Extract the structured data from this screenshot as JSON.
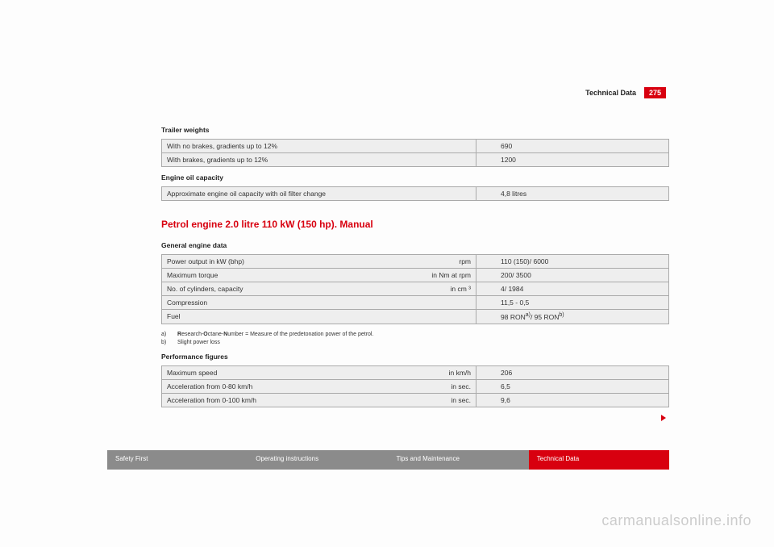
{
  "header": {
    "title": "Technical Data",
    "page": "275"
  },
  "colors": {
    "accent": "#d8000f",
    "tab_inactive": "#8b8b8b",
    "table_bg": "#eeeeee",
    "table_border": "#aaaaaa"
  },
  "sections": {
    "trailer_weights": {
      "label": "Trailer weights",
      "rows": [
        {
          "label": "With no brakes, gradients up to 12%",
          "value": "690"
        },
        {
          "label": "With brakes, gradients up to 12%",
          "value": "1200"
        }
      ]
    },
    "engine_oil": {
      "label": "Engine oil capacity",
      "rows": [
        {
          "label": "Approximate engine oil capacity with oil filter change",
          "value": "4,8 litres"
        }
      ]
    },
    "main_heading": "Petrol engine 2.0 litre 110 kW (150 hp). Manual",
    "general_engine": {
      "label": "General engine data",
      "rows": [
        {
          "label": "Power output in kW (bhp)",
          "unit": "rpm",
          "value": "110 (150)/ 6000"
        },
        {
          "label": "Maximum torque",
          "unit": "in Nm at rpm",
          "value": "200/ 3500"
        },
        {
          "label": "No. of cylinders, capacity",
          "unit": "in cm ³",
          "value": "4/ 1984"
        },
        {
          "label": "Compression",
          "unit": "",
          "value": "11,5 - 0,5"
        },
        {
          "label": "Fuel",
          "unit": "",
          "value_html": "98 RON<sup>a)</sup>/ 95 RON<sup>b)</sup>"
        }
      ]
    },
    "footnotes": [
      {
        "marker": "a)",
        "text_html": "<b>R</b>esearch-<b>O</b>ctane-<b>N</b>umber = Measure of the predetonation power of the petrol."
      },
      {
        "marker": "b)",
        "text": "Slight power loss"
      }
    ],
    "performance": {
      "label": "Performance figures",
      "rows": [
        {
          "label": "Maximum speed",
          "unit": "in km/h",
          "value": "206"
        },
        {
          "label": "Acceleration from 0-80 km/h",
          "unit": "in sec.",
          "value": "6,5"
        },
        {
          "label": "Acceleration from 0-100 km/h",
          "unit": "in sec.",
          "value": "9,6"
        }
      ]
    }
  },
  "nav": {
    "tabs": [
      {
        "label": "Safety First",
        "color": "#8b8b8b"
      },
      {
        "label": "Operating instructions",
        "color": "#8b8b8b"
      },
      {
        "label": "Tips and Maintenance",
        "color": "#8b8b8b"
      },
      {
        "label": "Technical Data",
        "color": "#d8000f"
      }
    ]
  },
  "watermark": "carmanualsonline.info"
}
